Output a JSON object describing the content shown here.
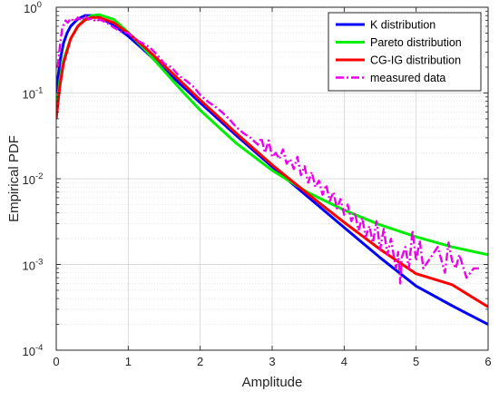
{
  "chart_data": {
    "type": "line",
    "xlabel": "Amplitude",
    "ylabel": "Empirical PDF",
    "xlim": [
      0,
      6
    ],
    "ylim": [
      0.0001,
      1
    ],
    "yscale": "log",
    "grid": true,
    "minor_grid": true,
    "legend_position": "top-right",
    "x_ticks": [
      {
        "value": 0,
        "label": "0"
      },
      {
        "value": 1,
        "label": "1"
      },
      {
        "value": 2,
        "label": "2"
      },
      {
        "value": 3,
        "label": "3"
      },
      {
        "value": 4,
        "label": "4"
      },
      {
        "value": 5,
        "label": "5"
      },
      {
        "value": 6,
        "label": "6"
      }
    ],
    "y_ticks": [
      {
        "exp": 0,
        "base": "10",
        "sup": "0"
      },
      {
        "exp": -1,
        "base": "10",
        "sup": "-1"
      },
      {
        "exp": -2,
        "base": "10",
        "sup": "-2"
      },
      {
        "exp": -3,
        "base": "10",
        "sup": "-3"
      },
      {
        "exp": -4,
        "base": "10",
        "sup": "-4"
      }
    ],
    "series": [
      {
        "name": "K distribution",
        "color": "#0000ff",
        "style": "solid",
        "x": [
          0,
          0.02,
          0.05,
          0.1,
          0.15,
          0.2,
          0.3,
          0.4,
          0.5,
          0.6,
          0.8,
          1.0,
          1.25,
          1.5,
          2.0,
          2.5,
          3.0,
          3.5,
          4.0,
          4.5,
          5.0,
          5.5,
          6.0
        ],
        "y": [
          0.1,
          0.14,
          0.23,
          0.38,
          0.5,
          0.6,
          0.73,
          0.8,
          0.8,
          0.76,
          0.62,
          0.46,
          0.3,
          0.19,
          0.077,
          0.032,
          0.0138,
          0.0061,
          0.0027,
          0.0012,
          0.00056,
          0.00033,
          0.0002
        ]
      },
      {
        "name": "Pareto distribution",
        "color": "#00ee00",
        "style": "solid",
        "x": [
          0,
          0.05,
          0.1,
          0.2,
          0.3,
          0.4,
          0.5,
          0.6,
          0.8,
          1.0,
          1.25,
          1.5,
          1.75,
          2.0,
          2.5,
          3.0,
          3.5,
          4.0,
          4.5,
          5.0,
          5.5,
          6.0
        ],
        "y": [
          0.06,
          0.14,
          0.24,
          0.43,
          0.6,
          0.73,
          0.8,
          0.82,
          0.72,
          0.51,
          0.31,
          0.18,
          0.105,
          0.063,
          0.026,
          0.0125,
          0.0069,
          0.0043,
          0.0029,
          0.0021,
          0.0016,
          0.0013
        ]
      },
      {
        "name": "CG-IG distribution",
        "color": "#ff0000",
        "style": "solid",
        "x": [
          0,
          0.05,
          0.1,
          0.2,
          0.3,
          0.4,
          0.5,
          0.6,
          0.8,
          1.0,
          1.25,
          1.5,
          2.0,
          2.5,
          3.0,
          3.5,
          4.0,
          4.5,
          5.0,
          5.5,
          6.0
        ],
        "y": [
          0.05,
          0.12,
          0.22,
          0.43,
          0.6,
          0.71,
          0.76,
          0.76,
          0.66,
          0.5,
          0.33,
          0.21,
          0.083,
          0.034,
          0.0145,
          0.0066,
          0.0031,
          0.0015,
          0.00078,
          0.00058,
          0.00032
        ]
      },
      {
        "name": "measured data",
        "color": "#ee00ee",
        "style": "dashdot",
        "x": [
          0.02,
          0.05,
          0.08,
          0.1,
          0.13,
          0.16,
          0.2,
          0.25,
          0.3,
          0.35,
          0.4,
          0.45,
          0.5,
          0.55,
          0.6,
          0.7,
          0.8,
          0.9,
          1.0,
          1.1,
          1.2,
          1.3,
          1.4,
          1.5,
          1.6,
          1.7,
          1.8,
          1.9,
          2.0,
          2.1,
          2.2,
          2.3,
          2.4,
          2.5,
          2.6,
          2.7,
          2.8,
          2.85,
          2.9,
          2.95,
          3.0,
          3.05,
          3.1,
          3.15,
          3.2,
          3.25,
          3.3,
          3.35,
          3.4,
          3.45,
          3.5,
          3.55,
          3.6,
          3.65,
          3.7,
          3.75,
          3.8,
          3.85,
          3.9,
          3.95,
          4.0,
          4.05,
          4.1,
          4.15,
          4.2,
          4.25,
          4.3,
          4.35,
          4.4,
          4.45,
          4.5,
          4.55,
          4.6,
          4.65,
          4.7,
          4.72,
          4.75,
          4.78,
          4.8,
          4.85,
          4.9,
          4.95,
          5.0,
          5.05,
          5.1,
          5.2,
          5.3,
          5.4,
          5.45,
          5.5,
          5.55,
          5.6,
          5.7,
          5.8,
          5.9
        ],
        "y": [
          0.2,
          0.35,
          0.55,
          0.62,
          0.7,
          0.66,
          0.74,
          0.68,
          0.76,
          0.7,
          0.8,
          0.72,
          0.74,
          0.68,
          0.72,
          0.66,
          0.58,
          0.52,
          0.5,
          0.42,
          0.38,
          0.34,
          0.28,
          0.22,
          0.2,
          0.16,
          0.14,
          0.12,
          0.095,
          0.08,
          0.07,
          0.06,
          0.05,
          0.04,
          0.034,
          0.03,
          0.025,
          0.03,
          0.02,
          0.028,
          0.018,
          0.02,
          0.017,
          0.022,
          0.015,
          0.017,
          0.013,
          0.018,
          0.011,
          0.014,
          0.009,
          0.012,
          0.008,
          0.0095,
          0.0065,
          0.0085,
          0.0055,
          0.007,
          0.0045,
          0.0058,
          0.0038,
          0.005,
          0.0032,
          0.004,
          0.0025,
          0.0035,
          0.0021,
          0.0028,
          0.0018,
          0.0032,
          0.0015,
          0.0026,
          0.0013,
          0.002,
          0.0011,
          0.0009,
          0.0014,
          0.0006,
          0.0012,
          0.0016,
          0.0009,
          0.0025,
          0.0011,
          0.0019,
          0.0009,
          0.0012,
          0.0016,
          0.0008,
          0.0018,
          0.0011,
          0.0009,
          0.0013,
          0.0007,
          0.0009,
          0.0009
        ]
      }
    ]
  }
}
